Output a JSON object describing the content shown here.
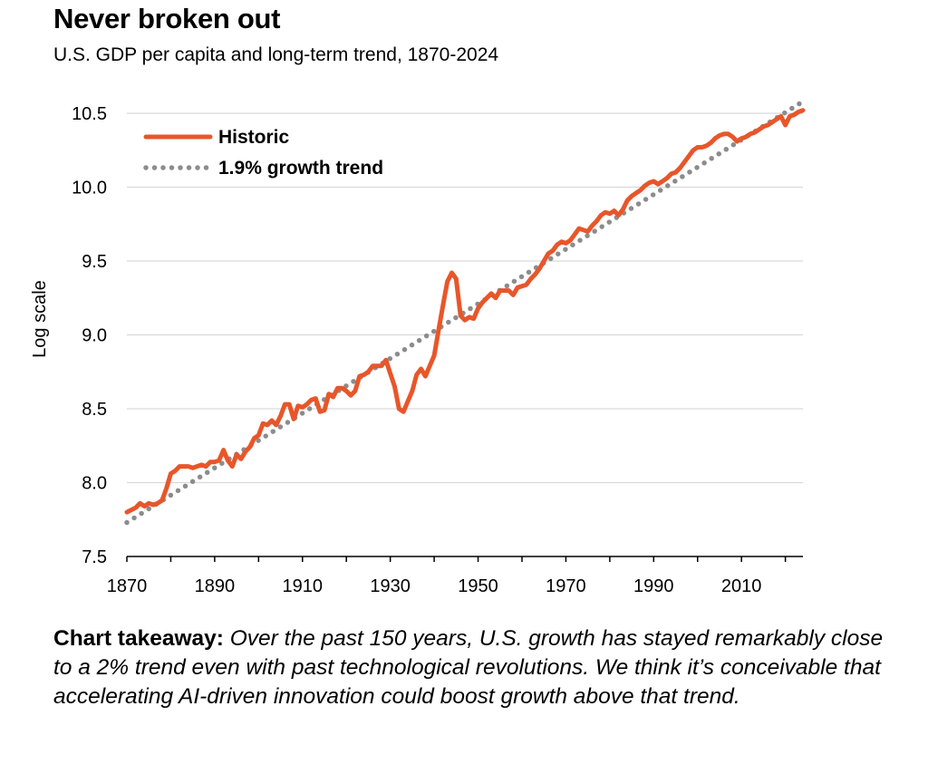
{
  "title": "Never broken out",
  "subtitle": "U.S. GDP per capita and long-term trend, 1870-2024",
  "takeaway": {
    "label": "Chart takeaway:",
    "text": "Over the past 150 years, U.S. growth has stayed remarkably close to a 2% trend even with past technological revolutions. We think it’s conceivable that accelerating AI-driven innovation could boost growth above that trend."
  },
  "colors": {
    "historic": "#e8562a",
    "trend": "#8c8c8c",
    "grid": "#d9d9d9",
    "axis": "#000000"
  },
  "chart_data": {
    "type": "line",
    "ylabel": "Log scale",
    "xlim": [
      1870,
      2024
    ],
    "ylim": [
      7.5,
      10.5
    ],
    "x_ticks": [
      1870,
      1890,
      1910,
      1930,
      1950,
      1970,
      1990,
      2010
    ],
    "y_ticks": [
      "7.5",
      "8.0",
      "8.5",
      "9.0",
      "9.5",
      "10.0",
      "10.5"
    ],
    "grid": "horizontal",
    "legend_position": "top-left",
    "series": [
      {
        "name": "Historic",
        "style": "solid",
        "points": [
          [
            1870,
            7.8
          ],
          [
            1872,
            7.83
          ],
          [
            1873,
            7.86
          ],
          [
            1874,
            7.84
          ],
          [
            1875,
            7.86
          ],
          [
            1876,
            7.85
          ],
          [
            1877,
            7.86
          ],
          [
            1878,
            7.88
          ],
          [
            1879,
            7.96
          ],
          [
            1880,
            8.06
          ],
          [
            1881,
            8.08
          ],
          [
            1882,
            8.11
          ],
          [
            1884,
            8.11
          ],
          [
            1885,
            8.1
          ],
          [
            1887,
            8.12
          ],
          [
            1888,
            8.11
          ],
          [
            1889,
            8.14
          ],
          [
            1890,
            8.14
          ],
          [
            1891,
            8.15
          ],
          [
            1892,
            8.22
          ],
          [
            1893,
            8.15
          ],
          [
            1894,
            8.11
          ],
          [
            1895,
            8.19
          ],
          [
            1896,
            8.16
          ],
          [
            1897,
            8.21
          ],
          [
            1898,
            8.24
          ],
          [
            1899,
            8.3
          ],
          [
            1900,
            8.32
          ],
          [
            1901,
            8.4
          ],
          [
            1902,
            8.39
          ],
          [
            1903,
            8.42
          ],
          [
            1904,
            8.39
          ],
          [
            1905,
            8.45
          ],
          [
            1906,
            8.53
          ],
          [
            1907,
            8.53
          ],
          [
            1908,
            8.43
          ],
          [
            1909,
            8.52
          ],
          [
            1910,
            8.51
          ],
          [
            1911,
            8.53
          ],
          [
            1912,
            8.56
          ],
          [
            1913,
            8.57
          ],
          [
            1914,
            8.48
          ],
          [
            1915,
            8.49
          ],
          [
            1916,
            8.6
          ],
          [
            1917,
            8.58
          ],
          [
            1918,
            8.64
          ],
          [
            1919,
            8.64
          ],
          [
            1920,
            8.62
          ],
          [
            1921,
            8.59
          ],
          [
            1922,
            8.62
          ],
          [
            1923,
            8.72
          ],
          [
            1924,
            8.73
          ],
          [
            1925,
            8.75
          ],
          [
            1926,
            8.79
          ],
          [
            1927,
            8.79
          ],
          [
            1928,
            8.79
          ],
          [
            1929,
            8.83
          ],
          [
            1930,
            8.74
          ],
          [
            1931,
            8.65
          ],
          [
            1932,
            8.5
          ],
          [
            1933,
            8.48
          ],
          [
            1934,
            8.55
          ],
          [
            1935,
            8.62
          ],
          [
            1936,
            8.73
          ],
          [
            1937,
            8.77
          ],
          [
            1938,
            8.72
          ],
          [
            1939,
            8.79
          ],
          [
            1940,
            8.86
          ],
          [
            1941,
            9.03
          ],
          [
            1942,
            9.2
          ],
          [
            1943,
            9.36
          ],
          [
            1944,
            9.42
          ],
          [
            1945,
            9.38
          ],
          [
            1946,
            9.13
          ],
          [
            1947,
            9.1
          ],
          [
            1948,
            9.12
          ],
          [
            1949,
            9.11
          ],
          [
            1950,
            9.18
          ],
          [
            1951,
            9.22
          ],
          [
            1952,
            9.25
          ],
          [
            1953,
            9.28
          ],
          [
            1954,
            9.25
          ],
          [
            1955,
            9.3
          ],
          [
            1956,
            9.3
          ],
          [
            1957,
            9.3
          ],
          [
            1958,
            9.27
          ],
          [
            1959,
            9.32
          ],
          [
            1960,
            9.33
          ],
          [
            1961,
            9.34
          ],
          [
            1962,
            9.38
          ],
          [
            1963,
            9.41
          ],
          [
            1964,
            9.45
          ],
          [
            1965,
            9.5
          ],
          [
            1966,
            9.55
          ],
          [
            1967,
            9.57
          ],
          [
            1968,
            9.61
          ],
          [
            1969,
            9.63
          ],
          [
            1970,
            9.62
          ],
          [
            1971,
            9.64
          ],
          [
            1972,
            9.68
          ],
          [
            1973,
            9.72
          ],
          [
            1974,
            9.71
          ],
          [
            1975,
            9.7
          ],
          [
            1976,
            9.74
          ],
          [
            1977,
            9.77
          ],
          [
            1978,
            9.81
          ],
          [
            1979,
            9.83
          ],
          [
            1980,
            9.82
          ],
          [
            1981,
            9.84
          ],
          [
            1982,
            9.81
          ],
          [
            1983,
            9.85
          ],
          [
            1984,
            9.91
          ],
          [
            1985,
            9.94
          ],
          [
            1986,
            9.96
          ],
          [
            1987,
            9.98
          ],
          [
            1988,
            10.01
          ],
          [
            1989,
            10.03
          ],
          [
            1990,
            10.04
          ],
          [
            1991,
            10.02
          ],
          [
            1992,
            10.04
          ],
          [
            1993,
            10.06
          ],
          [
            1994,
            10.09
          ],
          [
            1995,
            10.1
          ],
          [
            1996,
            10.13
          ],
          [
            1997,
            10.17
          ],
          [
            1998,
            10.21
          ],
          [
            1999,
            10.25
          ],
          [
            2000,
            10.27
          ],
          [
            2001,
            10.27
          ],
          [
            2002,
            10.28
          ],
          [
            2003,
            10.3
          ],
          [
            2004,
            10.33
          ],
          [
            2005,
            10.35
          ],
          [
            2006,
            10.36
          ],
          [
            2007,
            10.36
          ],
          [
            2008,
            10.34
          ],
          [
            2009,
            10.31
          ],
          [
            2010,
            10.33
          ],
          [
            2011,
            10.34
          ],
          [
            2012,
            10.36
          ],
          [
            2013,
            10.37
          ],
          [
            2014,
            10.39
          ],
          [
            2015,
            10.41
          ],
          [
            2016,
            10.42
          ],
          [
            2017,
            10.44
          ],
          [
            2018,
            10.46
          ],
          [
            2019,
            10.48
          ],
          [
            2020,
            10.42
          ],
          [
            2021,
            10.48
          ],
          [
            2022,
            10.49
          ],
          [
            2023,
            10.51
          ],
          [
            2024,
            10.52
          ]
        ]
      },
      {
        "name": "1.9% growth trend",
        "style": "dotted",
        "points": [
          [
            1870,
            7.73
          ],
          [
            2024,
            10.58
          ]
        ]
      }
    ]
  }
}
